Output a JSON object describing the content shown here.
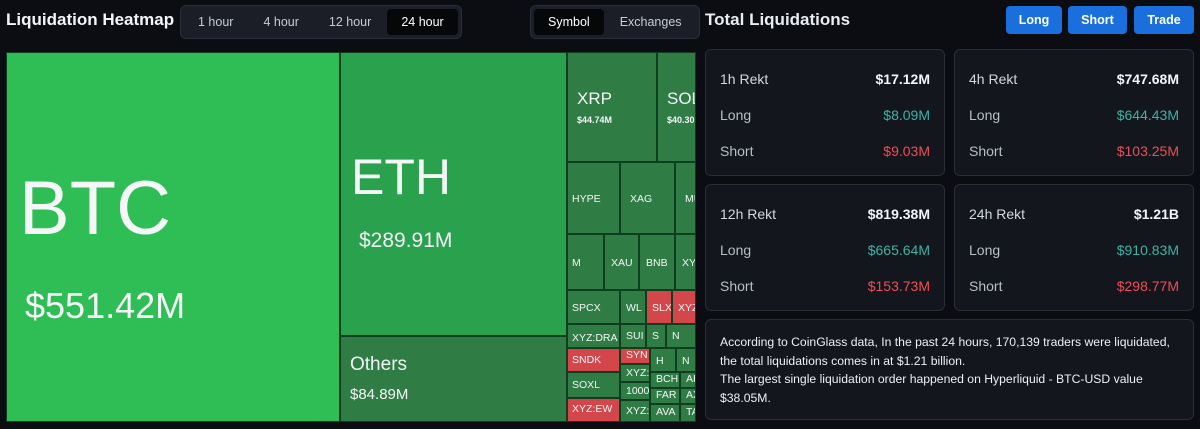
{
  "header": {
    "title": "Liquidation Heatmap",
    "time_tabs": [
      "1 hour",
      "4 hour",
      "12 hour",
      "24 hour"
    ],
    "active_time_tab": "24 hour",
    "view_tabs": [
      "Symbol",
      "Exchanges"
    ],
    "active_view_tab": "Symbol"
  },
  "panel": {
    "title": "Total Liquidations",
    "buttons": {
      "long": "Long",
      "short": "Short",
      "trade": "Trade"
    }
  },
  "heatmap": {
    "btc": {
      "symbol": "BTC",
      "value": "$551.42M"
    },
    "eth": {
      "symbol": "ETH",
      "value": "$289.91M"
    },
    "others": {
      "symbol": "Others",
      "value": "$84.89M"
    },
    "xrp": {
      "symbol": "XRP",
      "value": "$44.74M"
    },
    "sol": {
      "symbol": "SOL",
      "value": "$40.30"
    },
    "small": {
      "hype": "HYPE",
      "xag": "XAG",
      "mu": "MU",
      "m": "M",
      "xau": "XAU",
      "bnb": "BNB",
      "xy": "XY",
      "spcx": "SPCX",
      "wl": "WL",
      "slx": "SLX",
      "xyz": "XYZ",
      "xyzdra": "XYZ:DRA",
      "sui": "SUI",
      "s": "S",
      "n": "N",
      "sndk": "SNDK",
      "syn": "SYN",
      "h": "H",
      "n2": "N",
      "soxl": "SOXL",
      "xyzb": "XYZ:",
      "bch": "BCH",
      "ar": "AR",
      "xyzew": "XYZ:EW",
      "k1000": "1000",
      "far": "FAR",
      "ax": "AX",
      "xyz2": "XYZ:",
      "ava": "AVA",
      "ta": "TA"
    },
    "colors": {
      "green_bright": "#2fbe55",
      "green_mid": "#2aa14d",
      "green_dark": "#2b8a46",
      "red": "#d3474b"
    }
  },
  "stats": {
    "h1": {
      "label": "1h Rekt",
      "total": "$17.12M",
      "long_label": "Long",
      "long": "$8.09M",
      "short_label": "Short",
      "short": "$9.03M"
    },
    "h4": {
      "label": "4h Rekt",
      "total": "$747.68M",
      "long_label": "Long",
      "long": "$644.43M",
      "short_label": "Short",
      "short": "$103.25M"
    },
    "h12": {
      "label": "12h Rekt",
      "total": "$819.38M",
      "long_label": "Long",
      "long": "$665.64M",
      "short_label": "Short",
      "short": "$153.73M"
    },
    "h24": {
      "label": "24h Rekt",
      "total": "$1.21B",
      "long_label": "Long",
      "long": "$910.83M",
      "short_label": "Short",
      "short": "$298.77M"
    }
  },
  "summary": {
    "line1": "According to CoinGlass data, In the past 24 hours, 170,139 traders were liquidated, the total liquidations comes in at $1.21 billion.",
    "line2": "The largest single liquidation order happened on Hyperliquid - BTC-USD value $38.05M."
  },
  "theme": {
    "accent": "#1a6fdc",
    "long_color": "#3bb3a6",
    "short_color": "#ef4d56"
  }
}
